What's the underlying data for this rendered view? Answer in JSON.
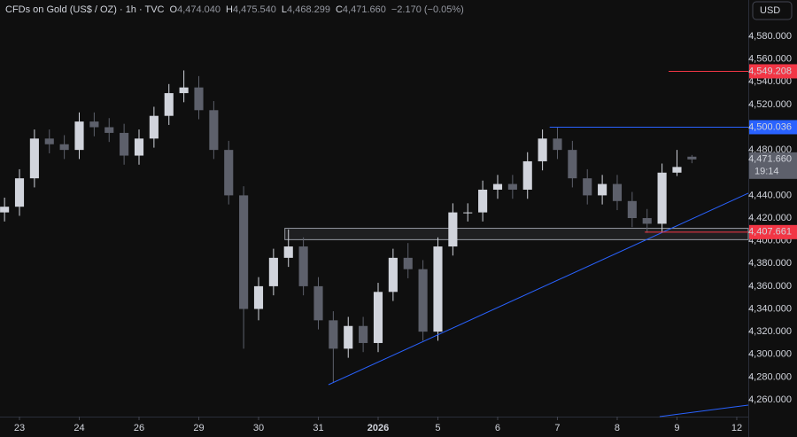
{
  "chart_data": {
    "type": "candlestick",
    "header": {
      "symbol": "CFDs on Gold (US$ / OZ) · 1h · TVC",
      "ohlc": [
        {
          "label": "O",
          "value": "4,474.040"
        },
        {
          "label": "H",
          "value": "4,475.540"
        },
        {
          "label": "L",
          "value": "4,468.299"
        },
        {
          "label": "C",
          "value": "4,471.660"
        }
      ],
      "change": "−2.170 (−0.05%)"
    },
    "currency": "USD",
    "x": [
      -0.25,
      0,
      0.25,
      0.5,
      0.75,
      1,
      1.25,
      1.5,
      1.75,
      2,
      2.25,
      2.5,
      2.75,
      3,
      3.25,
      3.5,
      3.75,
      4,
      4.25,
      4.5,
      4.75,
      5,
      5.25,
      5.5,
      5.75,
      6,
      6.25,
      6.5,
      6.75,
      7,
      7.25,
      7.5,
      7.75,
      8,
      8.25,
      8.5,
      8.75,
      9,
      9.25,
      9.5,
      9.75,
      10,
      10.25,
      10.5,
      10.75,
      11,
      11.25
    ],
    "open": [
      4425,
      4430,
      4455,
      4490,
      4485,
      4480,
      4505,
      4500,
      4495,
      4475,
      4490,
      4510,
      4530,
      4535,
      4515,
      4480,
      4440,
      4340,
      4360,
      4385,
      4395,
      4360,
      4330,
      4305,
      4325,
      4310,
      4355,
      4385,
      4375,
      4320,
      4395,
      4425,
      4425,
      4445,
      4450,
      4445,
      4470,
      4490,
      4480,
      4455,
      4440,
      4450,
      4435,
      4420,
      4415,
      4460,
      4474.04
    ],
    "high": [
      4438,
      4463,
      4498,
      4498,
      4493,
      4513,
      4513,
      4508,
      4503,
      4498,
      4518,
      4538,
      4550,
      4545,
      4523,
      4488,
      4448,
      4368,
      4393,
      4410,
      4403,
      4368,
      4338,
      4333,
      4333,
      4363,
      4393,
      4398,
      4383,
      4403,
      4433,
      4433,
      4453,
      4458,
      4458,
      4478,
      4498,
      4500,
      4488,
      4463,
      4458,
      4458,
      4443,
      4428,
      4468,
      4480,
      4475.54
    ],
    "low": [
      4417,
      4422,
      4447,
      4477,
      4472,
      4472,
      4492,
      4487,
      4467,
      4467,
      4482,
      4502,
      4522,
      4507,
      4472,
      4432,
      4305,
      4330,
      4352,
      4377,
      4352,
      4322,
      4275,
      4297,
      4302,
      4302,
      4347,
      4367,
      4312,
      4312,
      4387,
      4417,
      4417,
      4437,
      4437,
      4437,
      4462,
      4472,
      4447,
      4432,
      4432,
      4427,
      4412,
      4407,
      4407,
      4457,
      4468.299
    ],
    "close": [
      4430,
      4455,
      4490,
      4485,
      4480,
      4505,
      4500,
      4495,
      4475,
      4490,
      4510,
      4530,
      4535,
      4515,
      4480,
      4440,
      4340,
      4360,
      4385,
      4395,
      4360,
      4330,
      4305,
      4325,
      4310,
      4355,
      4385,
      4375,
      4320,
      4395,
      4425,
      4425,
      4445,
      4450,
      4445,
      4470,
      4490,
      4480,
      4455,
      4440,
      4450,
      4435,
      4420,
      4415,
      4460,
      4465,
      4471.66
    ],
    "up_color": "#d1d4dc",
    "down_color": "#5d606b",
    "xlim": [
      -0.326,
      12.193
    ],
    "xticks": [
      {
        "value": 0,
        "label": "23"
      },
      {
        "value": 1,
        "label": "24"
      },
      {
        "value": 2,
        "label": "26"
      },
      {
        "value": 3,
        "label": "29"
      },
      {
        "value": 4,
        "label": "30"
      },
      {
        "value": 5,
        "label": "31"
      },
      {
        "value": 6,
        "label": "2026"
      },
      {
        "value": 7,
        "label": "5"
      },
      {
        "value": 8,
        "label": "6"
      },
      {
        "value": 9,
        "label": "7"
      },
      {
        "value": 10,
        "label": "8"
      },
      {
        "value": 11,
        "label": "9"
      },
      {
        "value": 12,
        "label": "12"
      }
    ],
    "ylim": [
      4245.2,
      4612.0
    ],
    "yticks": [
      {
        "value": 4260,
        "label": "4,260.000"
      },
      {
        "value": 4280,
        "label": "4,280.000"
      },
      {
        "value": 4300,
        "label": "4,300.000"
      },
      {
        "value": 4320,
        "label": "4,320.000"
      },
      {
        "value": 4340,
        "label": "4,340.000"
      },
      {
        "value": 4360,
        "label": "4,360.000"
      },
      {
        "value": 4380,
        "label": "4,380.000"
      },
      {
        "value": 4400,
        "label": "4,400.000"
      },
      {
        "value": 4420,
        "label": "4,420.000"
      },
      {
        "value": 4440,
        "label": "4,440.000"
      },
      {
        "value": 4480,
        "label": "4,480.000"
      },
      {
        "value": 4520,
        "label": "4,520.000"
      },
      {
        "value": 4540,
        "label": "4,540.000"
      },
      {
        "value": 4560,
        "label": "4,560.000"
      },
      {
        "value": 4580,
        "label": "4,580.000"
      }
    ],
    "grid": false,
    "levels": [
      {
        "value": 4549.208,
        "label": "4,549.208",
        "color": "#f23645",
        "from": 10.86
      },
      {
        "value": 4500.036,
        "label": "4,500.036",
        "color": "#2962ff",
        "from": 8.87
      },
      {
        "value": 4407.661,
        "label": "4,407.661",
        "color": "#f23645",
        "from": 10.46
      }
    ],
    "last_price": {
      "value": 4471.66,
      "label": "4,471.660",
      "countdown": "19:14",
      "color": "#5d606b"
    },
    "zone": {
      "from": 4.44,
      "low": 4401,
      "high": 4411,
      "color": "#9598a1"
    },
    "trendlines": [
      {
        "x": [
          5.17,
          12.193
        ],
        "y": [
          4273.3,
          4441.9
        ],
        "color": "#2962ff"
      },
      {
        "x": [
          10.71,
          12.193
        ],
        "y": [
          4245.2,
          4255.3
        ],
        "color": "#2962ff"
      }
    ]
  }
}
